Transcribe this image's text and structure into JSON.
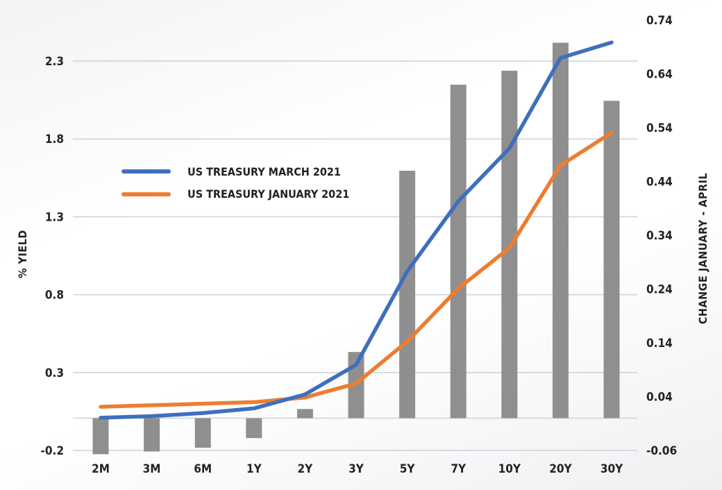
{
  "chart_data": {
    "type": "bar+line",
    "categories": [
      "2M",
      "3M",
      "6M",
      "1Y",
      "2Y",
      "3Y",
      "5Y",
      "7Y",
      "10Y",
      "20Y",
      "30Y"
    ],
    "left_axis": {
      "label": "% YIELD",
      "ticks": [
        "-0.2",
        "0.3",
        "0.8",
        "1.3",
        "1.8",
        "2.3"
      ],
      "range": [
        -0.2,
        2.55
      ]
    },
    "right_axis": {
      "label": "CHANGE JANUARY - APRIL",
      "ticks": [
        "-0.06",
        "0.04",
        "0.14",
        "0.24",
        "0.34",
        "0.44",
        "0.54",
        "0.64",
        "0.74"
      ],
      "range": [
        -0.06,
        0.74
      ]
    },
    "bars": {
      "name": "CHANGE JANUARY - APRIL",
      "axis": "right",
      "values": [
        -0.067,
        -0.062,
        -0.055,
        -0.037,
        0.017,
        0.123,
        0.46,
        0.62,
        0.646,
        0.698,
        0.59
      ]
    },
    "series": [
      {
        "name": "US TREASURY MARCH 2021",
        "axis": "left",
        "values": [
          0.01,
          0.02,
          0.04,
          0.07,
          0.16,
          0.35,
          0.95,
          1.4,
          1.74,
          2.32,
          2.42
        ]
      },
      {
        "name": "US TREASURY JANUARY 2021",
        "axis": "left",
        "values": [
          0.08,
          0.09,
          0.1,
          0.11,
          0.14,
          0.23,
          0.5,
          0.84,
          1.1,
          1.63,
          1.84
        ]
      }
    ],
    "legend_position": "upper-left",
    "grid": true,
    "colors": {
      "march": "#3e6fbe",
      "january": "#ed7d31",
      "bars": "#8f8f8f",
      "grid": "#cfd1d4"
    }
  }
}
